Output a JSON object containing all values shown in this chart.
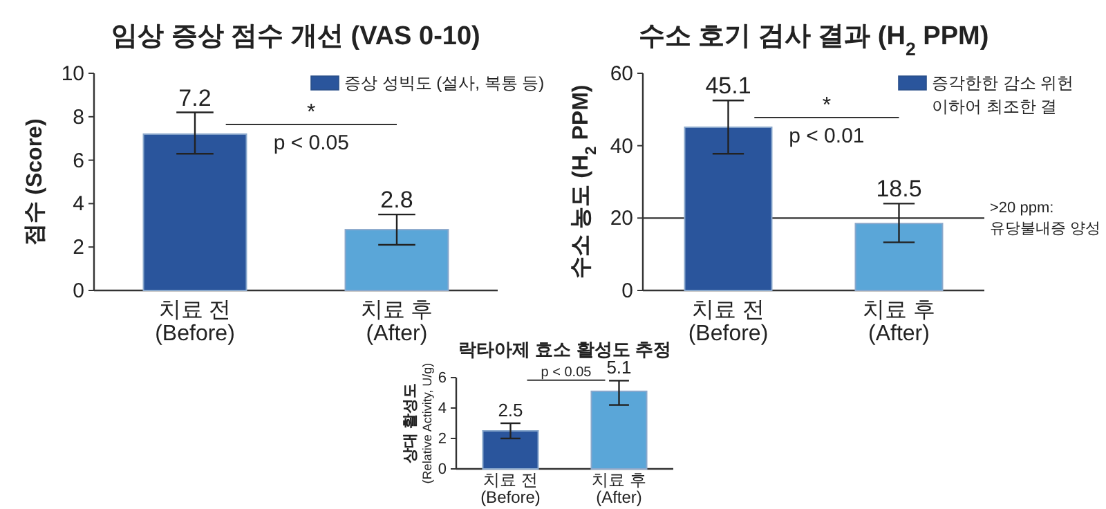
{
  "chart_data": [
    {
      "type": "bar",
      "title": "임상 증상 점수 개선 (VAS 0-10)",
      "ylabel": "점수 (Score)",
      "categories": [
        "치료 전\n(Before)",
        "치료 후\n(After)"
      ],
      "series": [
        {
          "name": "증상 성빅도 (설사, 복통 등)",
          "colors": [
            "#2a559c",
            "#5aa6d8"
          ],
          "values": [
            7.2,
            2.8
          ],
          "errors": [
            [
              6.3,
              8.2
            ],
            [
              2.1,
              3.5
            ]
          ]
        }
      ],
      "ylim": [
        0,
        10
      ],
      "yticks": [
        0,
        2,
        4,
        6,
        8,
        10
      ],
      "data_labels": true,
      "legend": "top right",
      "annotations": [
        "*",
        "p < 0.05"
      ]
    },
    {
      "type": "bar",
      "title": "수소 호기 검사 결과 (H$_{2}$ PPM)",
      "ylabel": "수소 농도 (H$_{2}$ PPM)",
      "categories": [
        "치료 전\n(Before)",
        "치료 후\n(After)"
      ],
      "series": [
        {
          "name": "증각한한 감소 위헌\n이하어 최조한 결",
          "colors": [
            "#2a559c",
            "#5aa6d8"
          ],
          "values": [
            45.1,
            18.5
          ],
          "errors": [
            [
              37.8,
              52.5
            ],
            [
              13.3,
              24.0
            ]
          ]
        }
      ],
      "ylim": [
        0,
        60
      ],
      "yticks": [
        0,
        20,
        40,
        60
      ],
      "data_labels": true,
      "legend": "top right",
      "annotations": [
        "*",
        "p < 0.01"
      ],
      "ref_lines": [
        {
          "axis": "y",
          "value": 20,
          "label": ">20 ppm:\n유당불내증 양성",
          "color": "#333333"
        }
      ]
    },
    {
      "type": "bar",
      "title": "락타아제 효소 활성도 추정",
      "ylabel": "상대 활성도\n(Relative Activity, U/g)",
      "categories": [
        "치료 전\n(Before)",
        "치료 후\n(After)"
      ],
      "series": [
        {
          "colors": [
            "#2a559c",
            "#5aa6d8"
          ],
          "values": [
            2.5,
            5.1
          ],
          "errors": [
            [
              2.0,
              3.0
            ],
            [
              4.2,
              5.8
            ]
          ]
        }
      ],
      "ylim": [
        0,
        6
      ],
      "yticks": [
        0,
        2,
        4,
        6
      ],
      "data_labels": true,
      "annotations": [
        "p < 0.05"
      ]
    }
  ]
}
